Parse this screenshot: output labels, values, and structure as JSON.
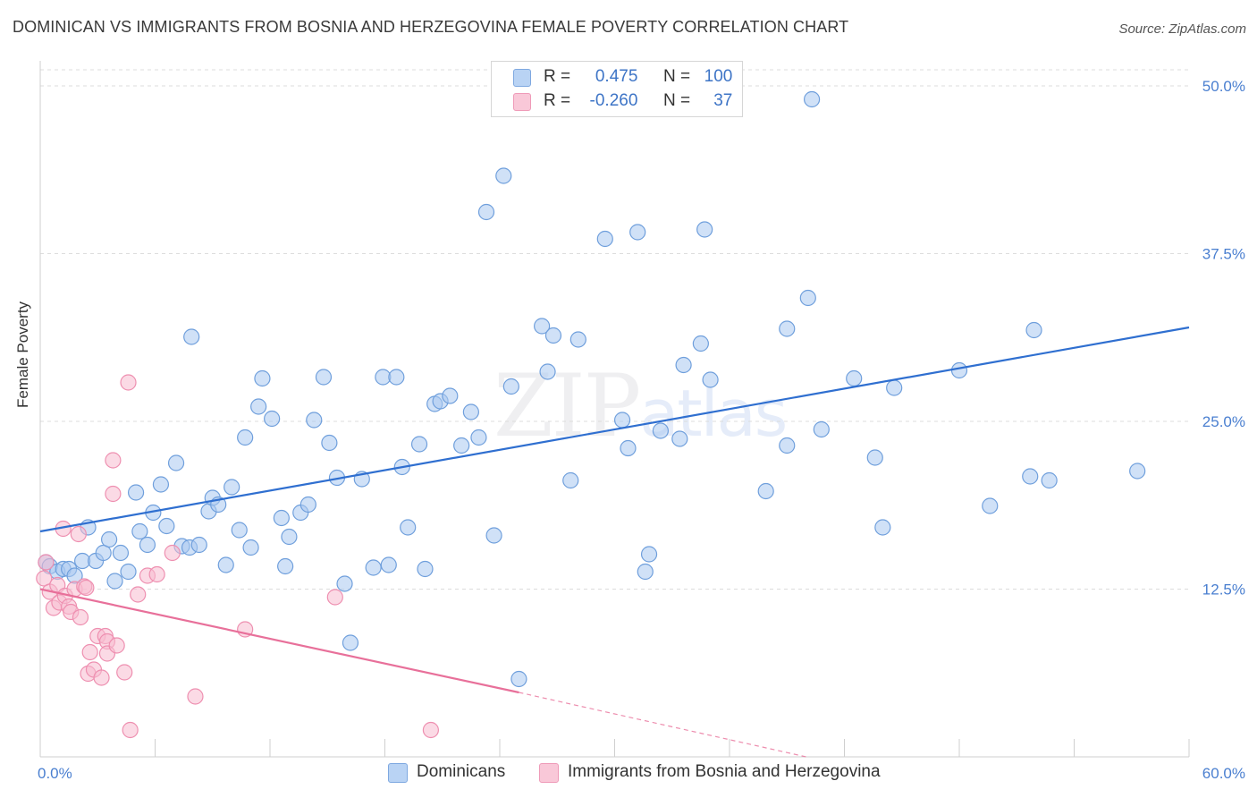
{
  "title": "DOMINICAN VS IMMIGRANTS FROM BOSNIA AND HERZEGOVINA FEMALE POVERTY CORRELATION CHART",
  "source": "Source: ZipAtlas.com",
  "watermark": {
    "zip": "ZIP",
    "atlas": "atlas"
  },
  "legend": {
    "rows": [
      {
        "r_label": "R =",
        "r_value": "0.475",
        "n_label": "N =",
        "n_value": "100",
        "color": "#a9c8f0"
      },
      {
        "r_label": "R =",
        "r_value": "-0.260",
        "n_label": "N =",
        "n_value": "37",
        "color": "#f7bcd0"
      }
    ]
  },
  "bottom_legend": [
    {
      "label": "Dominicans",
      "color": "#a9c8f0"
    },
    {
      "label": "Immigrants from Bosnia and Herzegovina",
      "color": "#f7bcd0"
    }
  ],
  "chart_data": {
    "type": "scatter",
    "title": "DOMINICAN VS IMMIGRANTS FROM BOSNIA AND HERZEGOVINA FEMALE POVERTY CORRELATION CHART",
    "xlabel": "",
    "ylabel": "Female Poverty",
    "xlim": [
      0,
      60
    ],
    "ylim": [
      0,
      50
    ],
    "x_tick_labels": [
      "0.0%",
      "60.0%"
    ],
    "y_ticks": [
      12.5,
      25.0,
      37.5,
      50.0
    ],
    "y_tick_labels": [
      "12.5%",
      "25.0%",
      "37.5%",
      "50.0%"
    ],
    "grid": "horizontal dashed",
    "legend_position": "top-center",
    "series": [
      {
        "name": "Dominicans",
        "color": "#a9c8f0",
        "stroke": "#6f9fdc",
        "trend": {
          "x": [
            0,
            60
          ],
          "y": [
            16.8,
            32.0
          ],
          "color": "#2f6fd0"
        },
        "points": [
          [
            0.3,
            14.5
          ],
          [
            0.5,
            14.2
          ],
          [
            0.9,
            13.8
          ],
          [
            1.2,
            14.0
          ],
          [
            1.5,
            14.0
          ],
          [
            1.8,
            13.5
          ],
          [
            2.2,
            14.6
          ],
          [
            2.5,
            17.1
          ],
          [
            2.9,
            14.6
          ],
          [
            3.3,
            15.2
          ],
          [
            3.6,
            16.2
          ],
          [
            3.9,
            13.1
          ],
          [
            4.2,
            15.2
          ],
          [
            4.6,
            13.8
          ],
          [
            5.0,
            19.7
          ],
          [
            5.2,
            16.8
          ],
          [
            5.6,
            15.8
          ],
          [
            5.9,
            18.2
          ],
          [
            6.3,
            20.3
          ],
          [
            6.6,
            17.2
          ],
          [
            7.1,
            21.9
          ],
          [
            7.4,
            15.7
          ],
          [
            7.8,
            15.6
          ],
          [
            7.9,
            31.3
          ],
          [
            8.3,
            15.8
          ],
          [
            8.8,
            18.3
          ],
          [
            9.0,
            19.3
          ],
          [
            9.3,
            18.8
          ],
          [
            9.7,
            14.3
          ],
          [
            10.0,
            20.1
          ],
          [
            10.4,
            16.9
          ],
          [
            10.7,
            23.8
          ],
          [
            11.0,
            15.6
          ],
          [
            11.4,
            26.1
          ],
          [
            11.6,
            28.2
          ],
          [
            12.1,
            25.2
          ],
          [
            12.6,
            17.8
          ],
          [
            12.8,
            14.2
          ],
          [
            13.0,
            16.4
          ],
          [
            13.6,
            18.2
          ],
          [
            14.0,
            18.8
          ],
          [
            14.3,
            25.1
          ],
          [
            14.8,
            28.3
          ],
          [
            15.1,
            23.4
          ],
          [
            15.5,
            20.8
          ],
          [
            15.9,
            12.9
          ],
          [
            16.2,
            8.5
          ],
          [
            16.8,
            20.7
          ],
          [
            17.4,
            14.1
          ],
          [
            17.9,
            28.3
          ],
          [
            18.2,
            14.3
          ],
          [
            18.6,
            28.3
          ],
          [
            18.9,
            21.6
          ],
          [
            19.2,
            17.1
          ],
          [
            19.8,
            23.3
          ],
          [
            20.1,
            14.0
          ],
          [
            20.6,
            26.3
          ],
          [
            20.9,
            26.5
          ],
          [
            21.4,
            26.9
          ],
          [
            22.0,
            23.2
          ],
          [
            22.5,
            25.7
          ],
          [
            22.9,
            23.8
          ],
          [
            23.3,
            40.6
          ],
          [
            23.7,
            16.5
          ],
          [
            24.2,
            43.3
          ],
          [
            24.6,
            27.6
          ],
          [
            25.0,
            5.8
          ],
          [
            26.2,
            32.1
          ],
          [
            26.5,
            28.7
          ],
          [
            26.8,
            31.4
          ],
          [
            27.7,
            20.6
          ],
          [
            28.1,
            31.1
          ],
          [
            29.5,
            38.6
          ],
          [
            30.4,
            25.1
          ],
          [
            30.7,
            23.0
          ],
          [
            31.2,
            39.1
          ],
          [
            31.6,
            13.8
          ],
          [
            31.8,
            15.1
          ],
          [
            32.4,
            24.3
          ],
          [
            33.4,
            23.7
          ],
          [
            33.6,
            29.2
          ],
          [
            34.5,
            30.8
          ],
          [
            34.7,
            39.3
          ],
          [
            35.0,
            28.1
          ],
          [
            37.9,
            19.8
          ],
          [
            39.0,
            23.2
          ],
          [
            39.0,
            31.9
          ],
          [
            40.1,
            34.2
          ],
          [
            40.3,
            49.0
          ],
          [
            40.8,
            24.4
          ],
          [
            42.5,
            28.2
          ],
          [
            43.6,
            22.3
          ],
          [
            44.0,
            17.1
          ],
          [
            44.6,
            27.5
          ],
          [
            48.0,
            28.8
          ],
          [
            49.6,
            18.7
          ],
          [
            51.7,
            20.9
          ],
          [
            51.9,
            31.8
          ],
          [
            52.7,
            20.6
          ],
          [
            57.3,
            21.3
          ]
        ]
      },
      {
        "name": "Immigrants from Bosnia and Herzegovina",
        "color": "#f7bcd0",
        "stroke": "#ee8fb0",
        "trend": {
          "x": [
            0,
            25
          ],
          "y": [
            12.5,
            4.8
          ],
          "dash_to": [
            40,
            0
          ],
          "color": "#e8709a"
        },
        "points": [
          [
            0.2,
            13.3
          ],
          [
            0.3,
            14.5
          ],
          [
            0.5,
            12.3
          ],
          [
            0.7,
            11.1
          ],
          [
            0.9,
            12.8
          ],
          [
            1.0,
            11.5
          ],
          [
            1.2,
            17.0
          ],
          [
            1.3,
            12.0
          ],
          [
            1.5,
            11.2
          ],
          [
            1.6,
            10.8
          ],
          [
            1.8,
            12.5
          ],
          [
            2.0,
            16.6
          ],
          [
            2.1,
            10.4
          ],
          [
            2.3,
            12.7
          ],
          [
            2.5,
            6.2
          ],
          [
            2.6,
            7.8
          ],
          [
            2.8,
            6.5
          ],
          [
            3.0,
            9.0
          ],
          [
            3.2,
            5.9
          ],
          [
            3.4,
            9.0
          ],
          [
            3.5,
            8.6
          ],
          [
            3.5,
            7.7
          ],
          [
            3.8,
            19.6
          ],
          [
            3.8,
            22.1
          ],
          [
            4.0,
            8.3
          ],
          [
            4.4,
            6.3
          ],
          [
            4.6,
            27.9
          ],
          [
            4.7,
            2.0
          ],
          [
            5.1,
            12.1
          ],
          [
            5.6,
            13.5
          ],
          [
            6.1,
            13.6
          ],
          [
            6.9,
            15.2
          ],
          [
            8.1,
            4.5
          ],
          [
            10.7,
            9.5
          ],
          [
            15.4,
            11.9
          ],
          [
            20.4,
            2.0
          ],
          [
            2.4,
            12.6
          ]
        ]
      }
    ]
  }
}
